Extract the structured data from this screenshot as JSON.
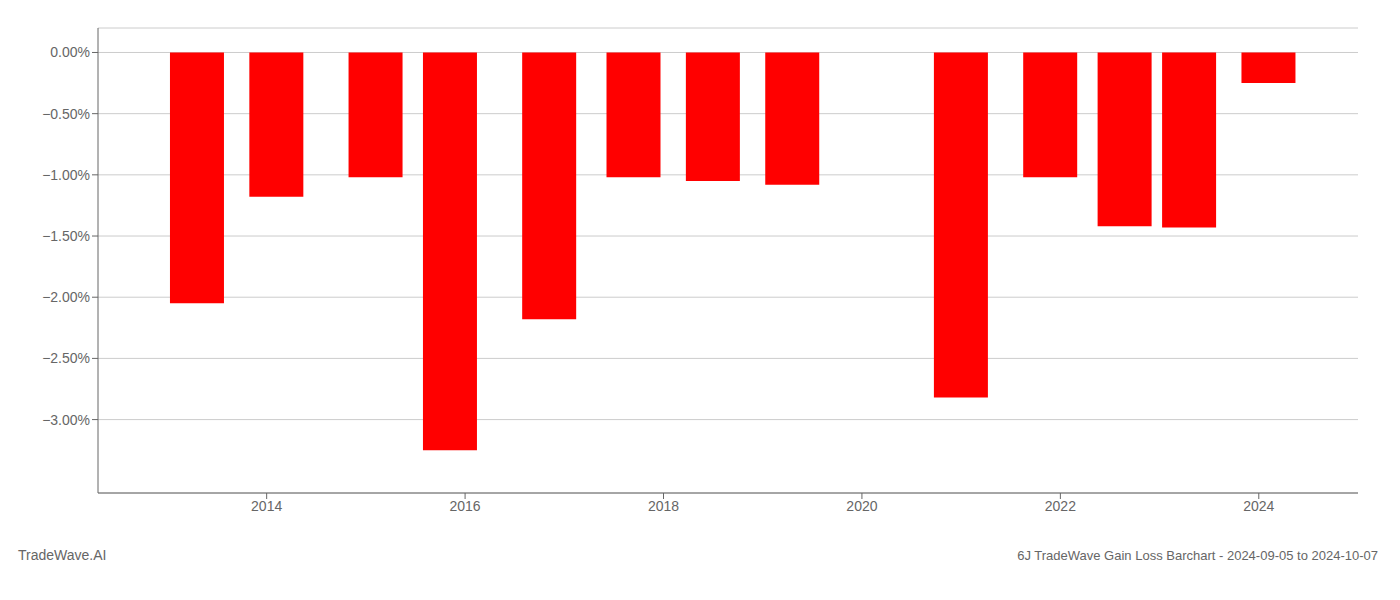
{
  "chart_data": {
    "type": "bar",
    "title": "6J TradeWave Gain Loss Barchart - 2024-09-05 to 2024-10-07",
    "annotations": [
      "TradeWave.AI"
    ],
    "x": [
      2013.3,
      2014.1,
      2015.1,
      2015.85,
      2016.85,
      2017.7,
      2018.5,
      2019.3,
      2021.0,
      2021.9,
      2022.65,
      2023.3,
      2024.1
    ],
    "values": [
      -2.05,
      -1.18,
      -1.02,
      -3.25,
      -2.18,
      -1.02,
      -1.05,
      -1.08,
      -2.82,
      -1.02,
      -1.42,
      -1.43,
      -0.25
    ],
    "color": "#ff0000",
    "xlim": [
      2012.3,
      2025.0
    ],
    "xticks": [
      2014,
      2016,
      2018,
      2020,
      2022,
      2024
    ],
    "ylim": [
      -3.6,
      0.2
    ],
    "yticks": [
      {
        "value": 0.0,
        "label": "0.00%"
      },
      {
        "value": -0.5,
        "label": "−0.50%"
      },
      {
        "value": -1.0,
        "label": "−1.00%"
      },
      {
        "value": -1.5,
        "label": "−1.50%"
      },
      {
        "value": -2.0,
        "label": "−2.00%"
      },
      {
        "value": -2.5,
        "label": "−2.50%"
      },
      {
        "value": -3.0,
        "label": "−3.00%"
      }
    ],
    "grid": true
  }
}
